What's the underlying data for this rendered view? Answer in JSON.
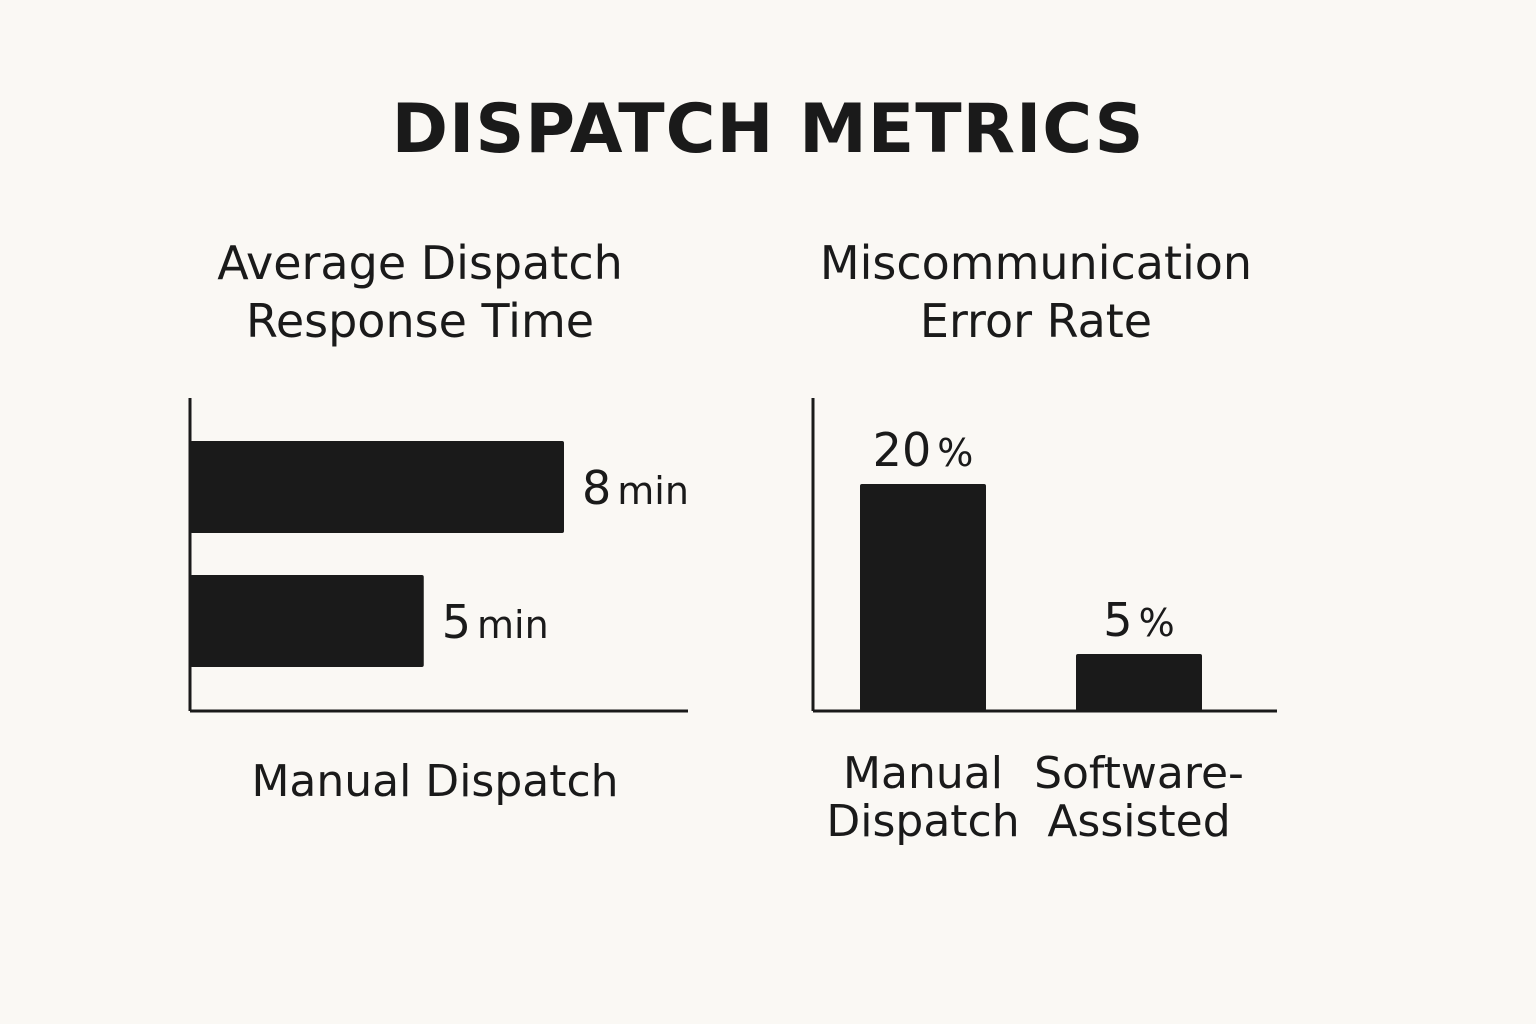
{
  "title": "DISPATCH METRICS",
  "chart_data": [
    {
      "type": "bar",
      "orientation": "horizontal",
      "title_lines": [
        "Average Dispatch",
        "Response Time"
      ],
      "categories": [
        "",
        ""
      ],
      "values": [
        8,
        5
      ],
      "value_labels": [
        {
          "number": "8",
          "unit": "min"
        },
        {
          "number": "5",
          "unit": "min"
        }
      ],
      "xlabel": "Manual Dispatch",
      "ylabel": "",
      "bar_color": "#1a1a1a"
    },
    {
      "type": "bar",
      "orientation": "vertical",
      "title_lines": [
        "Miscommunication",
        "Error Rate"
      ],
      "categories": [
        [
          "Manual",
          "Dispatch"
        ],
        [
          "Software-",
          "Assisted"
        ]
      ],
      "values": [
        20,
        5
      ],
      "value_labels": [
        {
          "number": "20",
          "unit": "%"
        },
        {
          "number": "5",
          "unit": "%"
        }
      ],
      "xlabel": "",
      "ylabel": "",
      "bar_color": "#1a1a1a"
    }
  ]
}
